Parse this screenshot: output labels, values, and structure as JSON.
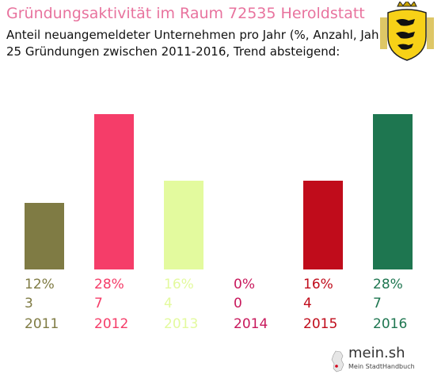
{
  "header": {
    "title": "Gründungsaktivität im Raum 72535 Heroldstatt",
    "subtitle_line1": "Anteil neuangemeldeter Unternehmen pro Jahr (%, Anzahl, Jahr)",
    "subtitle_line2": "25 Gründungen zwischen 2011-2016, Trend absteigend:"
  },
  "coat_of_arms": {
    "icon": "baden-wuerttemberg-coat-of-arms-icon"
  },
  "chart_data": {
    "type": "bar",
    "categories": [
      "2011",
      "2012",
      "2013",
      "2014",
      "2015",
      "2016"
    ],
    "values": [
      3,
      7,
      4,
      0,
      4,
      7
    ],
    "percent_labels": [
      "12%",
      "28%",
      "16%",
      "0%",
      "16%",
      "28%"
    ],
    "count_labels": [
      "3",
      "7",
      "4",
      "0",
      "4",
      "7"
    ],
    "colors": [
      "#7f7b44",
      "#f53d69",
      "#e3fa9e",
      "#c8195c",
      "#c00c1b",
      "#1e7650"
    ],
    "ylim": [
      0,
      7
    ],
    "grid": false,
    "legend": "none"
  },
  "logo": {
    "name": "mein.sh",
    "tagline": "Mein StadtHandbuch",
    "icon": "germany-map-icon"
  }
}
